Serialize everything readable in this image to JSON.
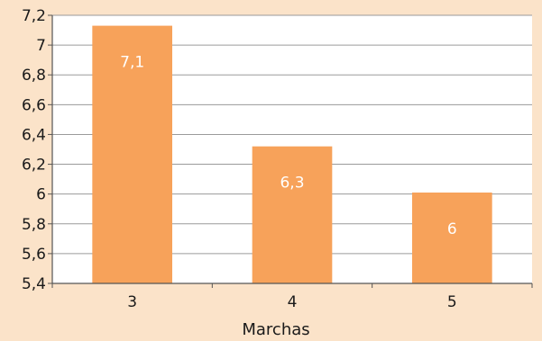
{
  "chart_data": {
    "type": "bar",
    "categories": [
      "3",
      "4",
      "5"
    ],
    "values": [
      7.13,
      6.32,
      6.01
    ],
    "data_labels": [
      "7,1",
      "6,3",
      "6"
    ],
    "y_tick_labels": [
      "5,4",
      "5,6",
      "5,8",
      "6",
      "6,2",
      "6,4",
      "6,6",
      "6,8",
      "7",
      "7,2"
    ],
    "ylim": [
      5.4,
      7.2
    ],
    "y_ticks": [
      5.4,
      5.6,
      5.8,
      6.0,
      6.2,
      6.4,
      6.6,
      6.8,
      7.0,
      7.2
    ],
    "xlabel": "Marchas",
    "ylabel": "",
    "title": "",
    "grid": true,
    "legend": "none",
    "colors": {
      "background": "#fbe3c9",
      "plot_background": "#ffffff",
      "bar": "#f7a25a",
      "grid": "#9a9a9a",
      "axis": "#555555"
    }
  }
}
